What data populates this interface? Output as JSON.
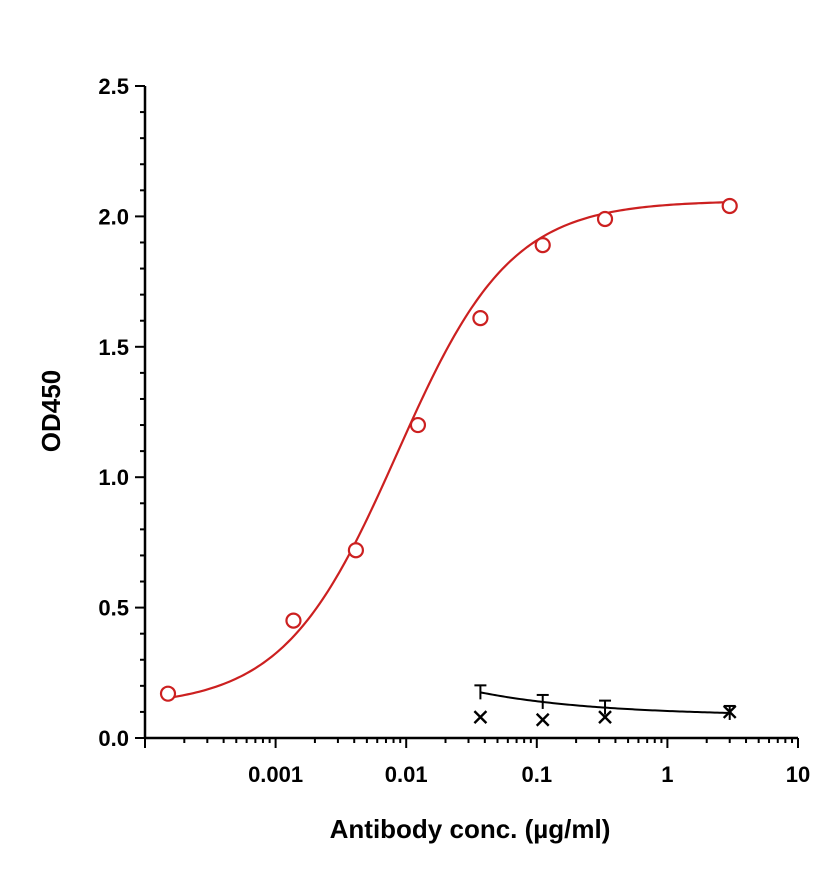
{
  "chart_data": {
    "type": "scatter",
    "title": "",
    "xlabel": "Antibody conc. (µg/ml)",
    "ylabel": "OD450",
    "x_scale": "log",
    "xlim": [
      0.0001,
      10
    ],
    "ylim": [
      0,
      2.5
    ],
    "x_ticks": [
      0.001,
      0.01,
      0.1,
      1,
      10
    ],
    "x_tick_labels": [
      "0.001",
      "0.01",
      "0.1",
      "1",
      "10"
    ],
    "y_ticks": [
      0,
      0.5,
      1.0,
      1.5,
      2.0,
      2.5
    ],
    "y_tick_labels": [
      "0.0",
      "0.5",
      "1.0",
      "1.5",
      "2.0",
      "2.5"
    ],
    "grid": false,
    "series": [
      {
        "marker": "circle-open",
        "color": "#cc2020",
        "fit": "sigmoid",
        "x": [
          0.00015,
          0.00137,
          0.00412,
          0.0123,
          0.037,
          0.111,
          0.333,
          3.0
        ],
        "y": [
          0.17,
          0.45,
          0.72,
          1.2,
          1.61,
          1.89,
          1.99,
          2.04
        ]
      },
      {
        "marker": "x",
        "color": "#000000",
        "fit": "line",
        "x": [
          0.037,
          0.111,
          0.333,
          3.0
        ],
        "y": [
          0.08,
          0.07,
          0.08,
          0.1
        ]
      }
    ]
  }
}
